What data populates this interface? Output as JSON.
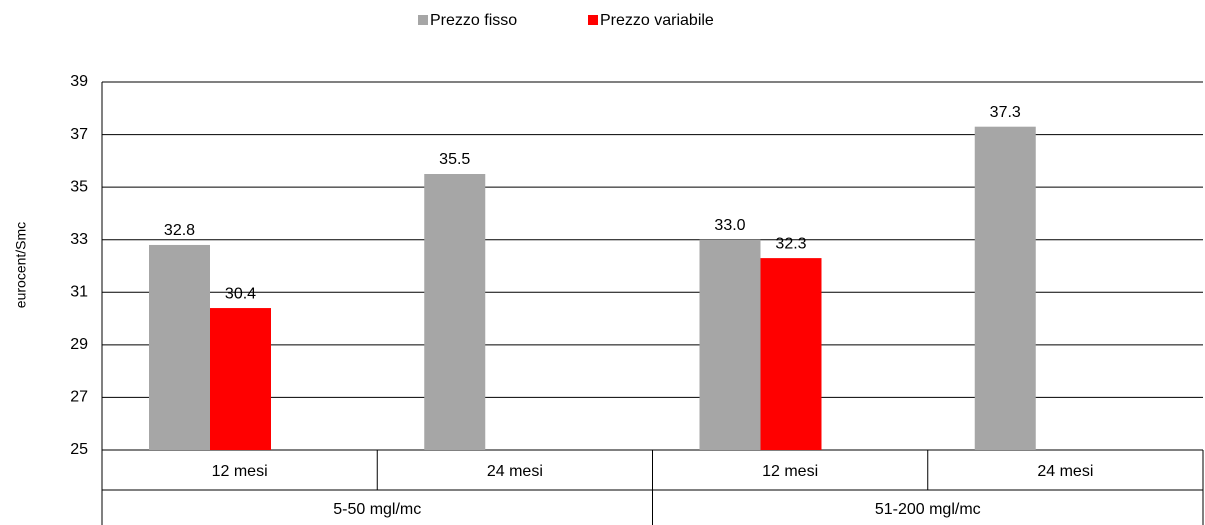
{
  "chart_data": {
    "type": "bar",
    "y_label": "eurocent/Smc",
    "groups": [
      {
        "label": "5-50 mgl/mc",
        "categories": [
          "12 mesi",
          "24 mesi"
        ]
      },
      {
        "label": "51-200 mgl/mc",
        "categories": [
          "12 mesi",
          "24 mesi"
        ]
      }
    ],
    "series": [
      {
        "name": "Prezzo fisso",
        "color": "#a6a6a6",
        "values": [
          32.8,
          35.5,
          33.0,
          37.3
        ],
        "value_labels": [
          "32.8",
          "35.5",
          "33.0",
          "37.3"
        ]
      },
      {
        "name": "Prezzo variabile",
        "color": "#ff0000",
        "values": [
          30.4,
          null,
          32.3,
          null
        ]
      }
    ],
    "ylim": [
      25,
      39
    ],
    "yticks": [
      25,
      27,
      29,
      31,
      33,
      35,
      37,
      39
    ],
    "grid": true,
    "legend": "top"
  }
}
